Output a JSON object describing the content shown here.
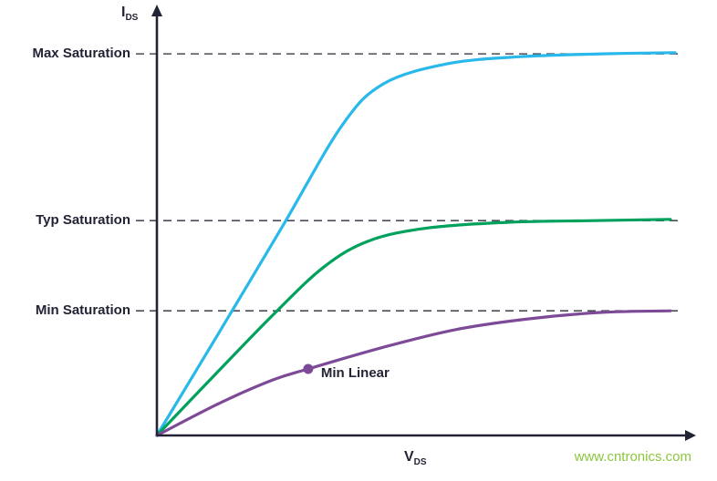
{
  "chart_data": {
    "type": "line",
    "title": "",
    "xlabel": "V_DS",
    "ylabel": "I_DS",
    "x_range": [
      0,
      100
    ],
    "y_range": [
      0,
      100
    ],
    "units": "arbitrary (qualitative MOSFET output characteristics)",
    "grid": false,
    "legend": "none",
    "axis_labels": {
      "y_main": "I",
      "y_sub": "DS",
      "x_main": "V",
      "x_sub": "DS"
    },
    "series": [
      {
        "name": "Max",
        "color": "#29B8EA",
        "points": [
          [
            0,
            0
          ],
          [
            12,
            25.7
          ],
          [
            24.3,
            52.3
          ],
          [
            35.7,
            77.3
          ],
          [
            43.7,
            87.7
          ],
          [
            56,
            92.7
          ],
          [
            70.1,
            94.5
          ],
          [
            85.9,
            95.2
          ],
          [
            100,
            95.5
          ]
        ]
      },
      {
        "name": "Typ",
        "color": "#00A15D",
        "points": [
          [
            0,
            0
          ],
          [
            11.1,
            15.0
          ],
          [
            22.5,
            30.2
          ],
          [
            32.2,
            42.0
          ],
          [
            41.0,
            48.6
          ],
          [
            52.5,
            51.8
          ],
          [
            68.3,
            53.2
          ],
          [
            84.2,
            53.6
          ],
          [
            99.1,
            53.9
          ]
        ]
      },
      {
        "name": "Min",
        "color": "#7D4A98",
        "points": [
          [
            0,
            0
          ],
          [
            12.0,
            8.0
          ],
          [
            22.5,
            13.9
          ],
          [
            29.2,
            16.6
          ],
          [
            43.7,
            22.0
          ],
          [
            57.7,
            26.4
          ],
          [
            71.8,
            29.1
          ],
          [
            85.9,
            30.7
          ],
          [
            99.1,
            31.1
          ]
        ]
      }
    ],
    "reference_lines": [
      {
        "label": "Max Saturation",
        "y": 95.2
      },
      {
        "label": "Typ Saturation",
        "y": 53.6
      },
      {
        "label": "Min Saturation",
        "y": 31.1
      }
    ],
    "annotations": [
      {
        "label": "Min Linear",
        "x": 29.2,
        "y": 16.6,
        "color": "#7D4A98",
        "marker": "dot"
      }
    ],
    "colors": {
      "axis": "#232336",
      "text": "#232336",
      "dash": "#4B4B58"
    }
  },
  "watermark": {
    "text": "www.cntronics.com",
    "color": "#8CC63E"
  }
}
